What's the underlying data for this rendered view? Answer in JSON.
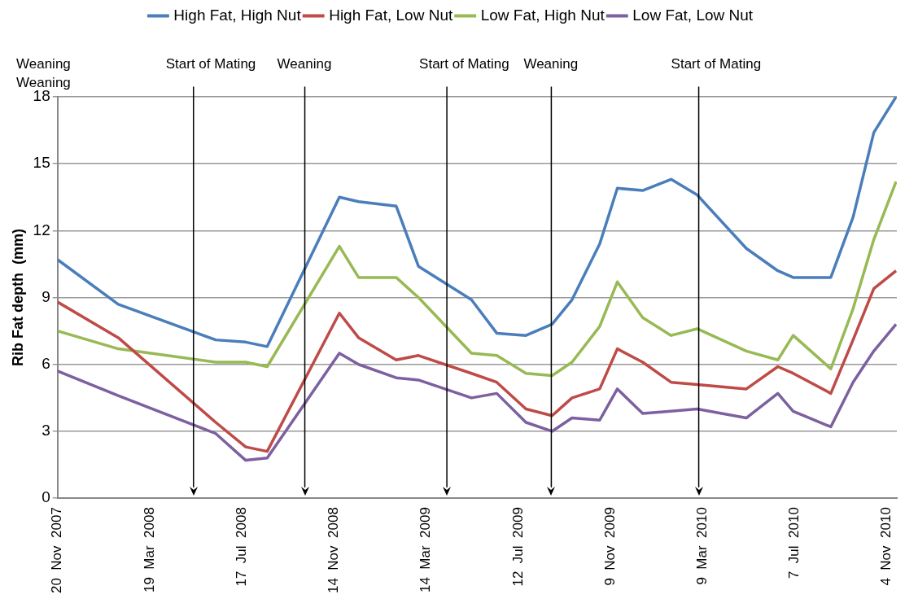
{
  "chart_data": {
    "type": "line",
    "ylabel": "Rib Fat depth  (mm)",
    "x": [
      "2007-11-20",
      "2008-02-07",
      "2008-06-13",
      "2008-07-22",
      "2008-08-19",
      "2008-11-21",
      "2008-12-16",
      "2009-02-03",
      "2009-03-04",
      "2009-05-12",
      "2009-06-14",
      "2009-07-22",
      "2009-08-25",
      "2009-09-20",
      "2009-10-26",
      "2009-11-18",
      "2009-12-21",
      "2010-01-27",
      "2010-03-02",
      "2010-05-05",
      "2010-06-15",
      "2010-07-05",
      "2010-08-23",
      "2010-09-21",
      "2010-10-18",
      "2010-11-16"
    ],
    "series": [
      {
        "name": "High Fat, High Nut",
        "color": "#4a7ebb",
        "values": [
          10.7,
          8.7,
          7.1,
          7.0,
          6.8,
          13.5,
          13.3,
          13.1,
          10.4,
          8.9,
          7.4,
          7.3,
          7.8,
          8.9,
          11.4,
          13.9,
          13.8,
          14.3,
          13.6,
          11.2,
          10.2,
          9.9,
          9.9,
          12.6,
          16.4,
          18.0
        ]
      },
      {
        "name": "High Fat, Low Nut",
        "color": "#be4b48",
        "values": [
          8.8,
          7.2,
          3.4,
          2.3,
          2.1,
          8.3,
          7.2,
          6.2,
          6.4,
          5.6,
          5.2,
          4.0,
          3.7,
          4.5,
          4.9,
          6.7,
          6.1,
          5.2,
          5.1,
          4.9,
          5.9,
          5.6,
          4.7,
          7.1,
          9.4,
          10.2
        ]
      },
      {
        "name": "Low Fat, High Nut",
        "color": "#98b954",
        "values": [
          7.5,
          6.7,
          6.1,
          6.1,
          5.9,
          11.3,
          9.9,
          9.9,
          9.0,
          6.5,
          6.4,
          5.6,
          5.5,
          6.1,
          7.7,
          9.7,
          8.1,
          7.3,
          7.6,
          6.6,
          6.2,
          7.3,
          5.8,
          8.5,
          11.6,
          14.2
        ]
      },
      {
        "name": "Low Fat, Low Nut",
        "color": "#7d60a0",
        "values": [
          5.7,
          4.6,
          2.9,
          1.7,
          1.8,
          6.5,
          6.0,
          5.4,
          5.3,
          4.5,
          4.7,
          3.4,
          3.0,
          3.6,
          3.5,
          4.9,
          3.8,
          3.9,
          4.0,
          3.6,
          4.7,
          3.9,
          3.2,
          5.2,
          6.6,
          7.8
        ]
      }
    ],
    "xlim": [
      "2007-11-20",
      "2010-11-17"
    ],
    "xticks": [
      {
        "value": "2007-11-20",
        "label": "20  Nov  2007"
      },
      {
        "value": "2008-03-19",
        "label": "19  Mar  2008"
      },
      {
        "value": "2008-07-17",
        "label": "17  Jul  2008"
      },
      {
        "value": "2008-11-14",
        "label": "14  Nov  2008"
      },
      {
        "value": "2009-03-14",
        "label": "14  Mar  2009"
      },
      {
        "value": "2009-07-12",
        "label": "12  Jul  2009"
      },
      {
        "value": "2009-11-09",
        "label": "9  Nov  2009"
      },
      {
        "value": "2010-03-09",
        "label": "9  Mar  2010"
      },
      {
        "value": "2010-07-07",
        "label": "7  Jul  2010"
      },
      {
        "value": "2010-11-04",
        "label": "4  Nov  2010"
      }
    ],
    "ylim": [
      0,
      18
    ],
    "yticks": [
      0,
      3,
      6,
      9,
      12,
      15,
      18
    ],
    "ref_lines": [
      {
        "axis": "x",
        "value": "2008-05-15",
        "label": "Start of Mating",
        "color": "#000000"
      },
      {
        "axis": "x",
        "value": "2008-10-07",
        "label": "Weaning",
        "color": "#000000"
      },
      {
        "axis": "x",
        "value": "2009-04-10",
        "label": "Start of Mating",
        "color": "#000000"
      },
      {
        "axis": "x",
        "value": "2009-08-24",
        "label": "Weaning",
        "color": "#000000"
      },
      {
        "axis": "x",
        "value": "2010-03-04",
        "label": "Start of Mating",
        "color": "#000000"
      }
    ],
    "annotations": [
      "Weaning",
      "Weaning"
    ],
    "grid": "y",
    "legend": "top",
    "marker": "none",
    "line_style": "solid"
  }
}
